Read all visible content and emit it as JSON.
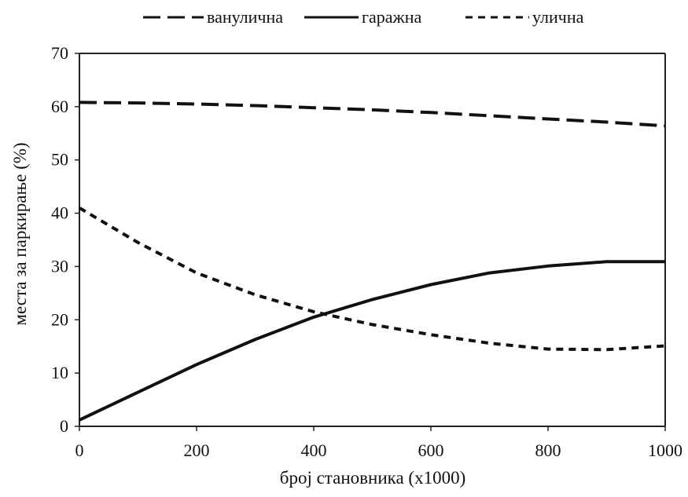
{
  "chart_data": {
    "type": "line",
    "title": "",
    "xlabel": "број становника (x1000)",
    "ylabel": "места за паркирање (%)",
    "xlim": [
      0,
      1000
    ],
    "ylim": [
      0,
      70
    ],
    "xticks": [
      "0",
      "200",
      "400",
      "600",
      "800",
      "1000"
    ],
    "yticks": [
      "0",
      "10",
      "20",
      "30",
      "40",
      "50",
      "60",
      "70"
    ],
    "grid": false,
    "legend_position": "top",
    "series": [
      {
        "name": "ванулична",
        "style": "dashed",
        "color": "#111111",
        "x": [
          0,
          100,
          200,
          300,
          400,
          500,
          600,
          700,
          800,
          900,
          1000
        ],
        "y": [
          60.8,
          60.7,
          60.5,
          60.2,
          59.8,
          59.4,
          58.9,
          58.3,
          57.7,
          57.1,
          56.4
        ]
      },
      {
        "name": "гаражна",
        "style": "solid",
        "color": "#111111",
        "x": [
          0,
          100,
          200,
          300,
          400,
          500,
          600,
          700,
          800,
          900,
          1000
        ],
        "y": [
          1.2,
          6.4,
          11.6,
          16.3,
          20.5,
          23.8,
          26.6,
          28.8,
          30.1,
          30.9,
          30.9
        ]
      },
      {
        "name": "улична",
        "style": "dotted",
        "color": "#111111",
        "x": [
          0,
          100,
          200,
          300,
          400,
          500,
          600,
          700,
          800,
          900,
          1000
        ],
        "y": [
          41,
          34.5,
          28.8,
          24.7,
          21.5,
          19.1,
          17.2,
          15.6,
          14.5,
          14.4,
          15.1
        ]
      }
    ]
  }
}
